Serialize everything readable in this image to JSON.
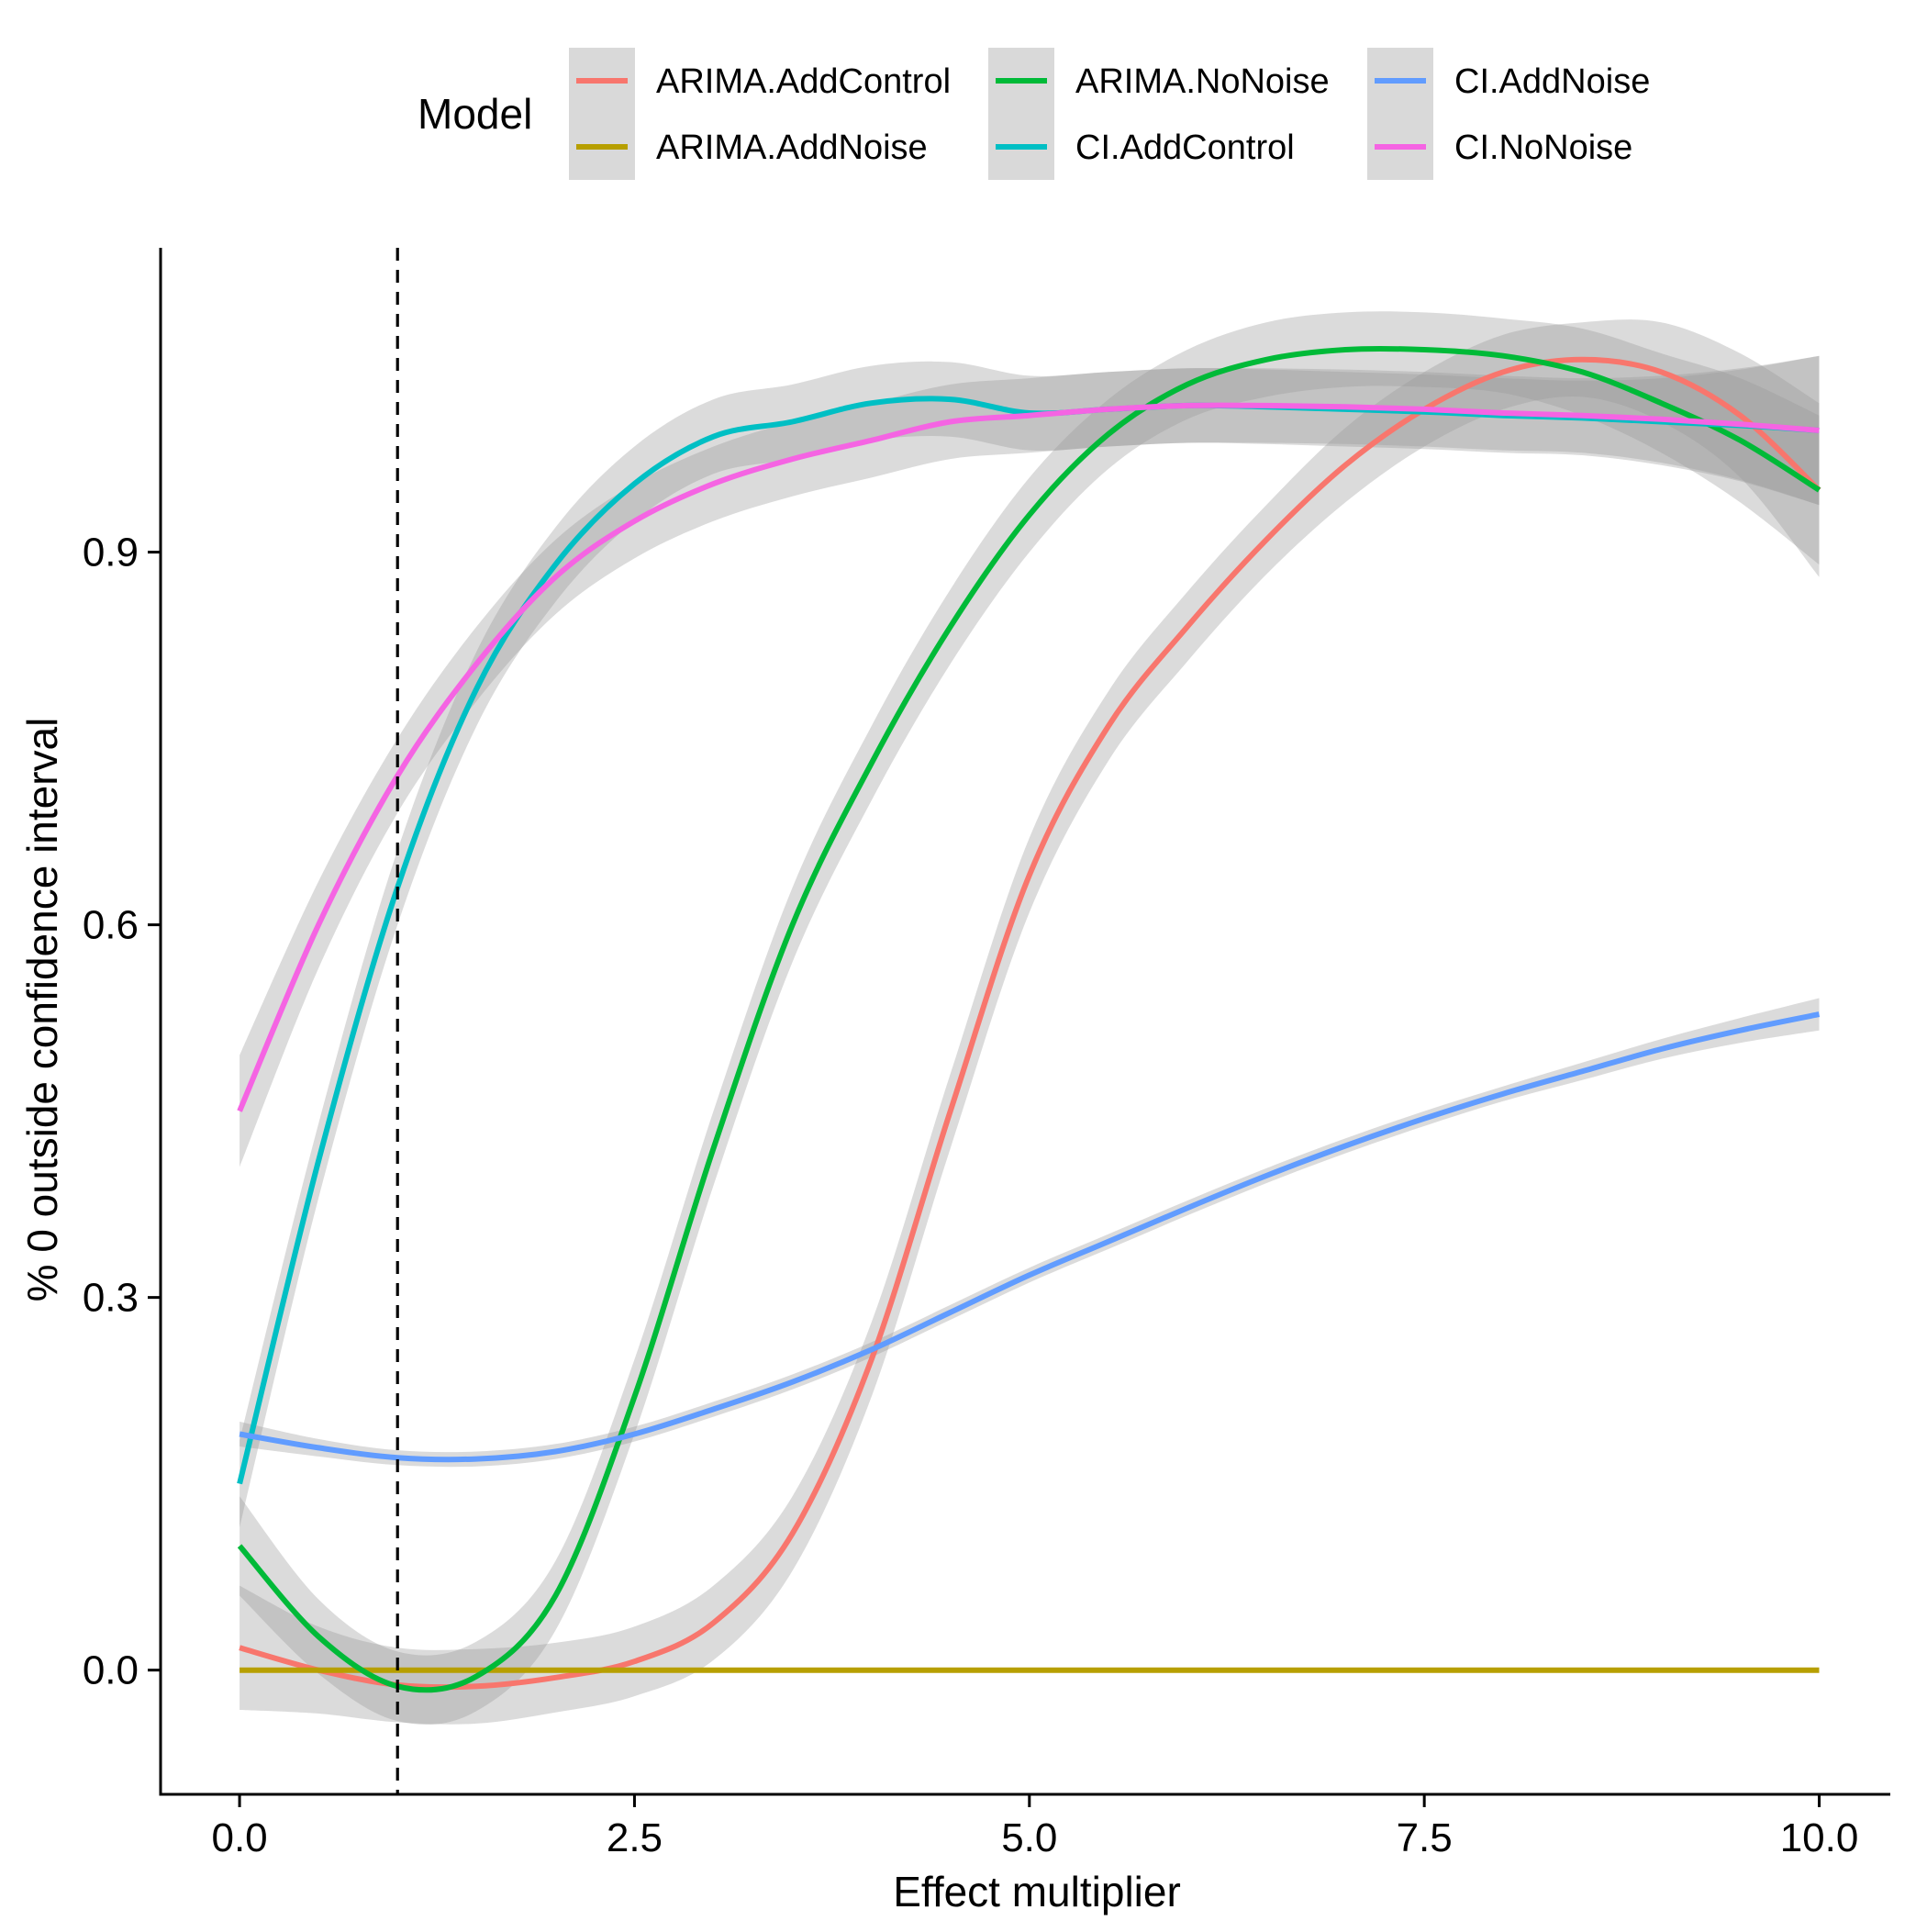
{
  "chart_data": {
    "type": "line",
    "title": "",
    "xlabel": "Effect multiplier",
    "ylabel": "% 0 outside confidence interval",
    "xlim": [
      -0.5,
      10.45
    ],
    "ylim": [
      -0.1,
      1.145
    ],
    "x_ticks": [
      0.0,
      2.5,
      5.0,
      7.5,
      10.0
    ],
    "x_tick_labels": [
      "0.0",
      "2.5",
      "5.0",
      "7.5",
      "10.0"
    ],
    "y_ticks": [
      0.0,
      0.3,
      0.6,
      0.9
    ],
    "y_tick_labels": [
      "0.0",
      "0.3",
      "0.6",
      "0.9"
    ],
    "grid": false,
    "reference_line": {
      "x": 1.0,
      "style": "dashed",
      "color": "#000000"
    },
    "legend": {
      "title": "Model",
      "position": "top",
      "columns": 3
    },
    "x": [
      0,
      0.5,
      1,
      1.5,
      2,
      2.5,
      3,
      3.5,
      4,
      4.5,
      5,
      5.5,
      6,
      6.5,
      7,
      7.5,
      8,
      8.5,
      9,
      9.5,
      10
    ],
    "series": [
      {
        "name": "ARIMA.AddControl",
        "color": "#F8766D",
        "values": [
          0.018,
          0.0,
          -0.012,
          -0.013,
          -0.006,
          0.007,
          0.038,
          0.11,
          0.25,
          0.45,
          0.64,
          0.76,
          0.84,
          0.91,
          0.97,
          1.015,
          1.045,
          1.055,
          1.045,
          1.01,
          0.95
        ],
        "band": [
          0.05,
          0.035,
          0.03,
          0.03,
          0.028,
          0.028,
          0.03,
          0.03,
          0.03,
          0.03,
          0.03,
          0.028,
          0.028,
          0.028,
          0.03,
          0.03,
          0.03,
          0.03,
          0.04,
          0.05,
          0.07
        ]
      },
      {
        "name": "ARIMA.AddNoise",
        "color": "#B79F00",
        "values": [
          0.0,
          0.0,
          0.0,
          0.0,
          0.0,
          0.0,
          0.0,
          0.0,
          0.0,
          0.0,
          0.0,
          0.0,
          0.0,
          0.0,
          0.0,
          0.0,
          0.0,
          0.0,
          0.0,
          0.0,
          0.0
        ],
        "band": [
          0,
          0,
          0,
          0,
          0,
          0,
          0,
          0,
          0,
          0,
          0,
          0,
          0,
          0,
          0,
          0,
          0,
          0,
          0,
          0,
          0
        ]
      },
      {
        "name": "ARIMA.NoNoise",
        "color": "#00BA38",
        "values": [
          0.1,
          0.027,
          -0.013,
          -0.005,
          0.06,
          0.22,
          0.42,
          0.6,
          0.73,
          0.84,
          0.93,
          0.995,
          1.035,
          1.055,
          1.063,
          1.063,
          1.058,
          1.045,
          1.02,
          0.99,
          0.95
        ],
        "band": [
          0.04,
          0.03,
          0.028,
          0.028,
          0.028,
          0.03,
          0.03,
          0.03,
          0.03,
          0.03,
          0.03,
          0.028,
          0.028,
          0.03,
          0.03,
          0.03,
          0.03,
          0.035,
          0.04,
          0.05,
          0.06
        ]
      },
      {
        "name": "CI.AddControl",
        "color": "#00BFC4",
        "values": [
          0.15,
          0.41,
          0.63,
          0.79,
          0.89,
          0.955,
          0.993,
          1.005,
          1.02,
          1.023,
          1.012,
          1.015,
          1.018,
          1.017,
          1.015,
          1.013,
          1.01,
          1.008,
          1.005,
          1.002,
          0.998
        ],
        "band": [
          0.035,
          0.03,
          0.03,
          0.03,
          0.03,
          0.03,
          0.03,
          0.03,
          0.03,
          0.03,
          0.03,
          0.03,
          0.03,
          0.03,
          0.03,
          0.03,
          0.03,
          0.03,
          0.035,
          0.045,
          0.06
        ]
      },
      {
        "name": "CI.AddNoise",
        "color": "#619CFF",
        "values": [
          0.19,
          0.179,
          0.171,
          0.17,
          0.176,
          0.19,
          0.21,
          0.232,
          0.258,
          0.288,
          0.318,
          0.345,
          0.372,
          0.398,
          0.422,
          0.444,
          0.464,
          0.482,
          0.5,
          0.515,
          0.528
        ],
        "band": [
          0.01,
          0.007,
          0.006,
          0.006,
          0.006,
          0.006,
          0.006,
          0.006,
          0.006,
          0.006,
          0.006,
          0.006,
          0.006,
          0.006,
          0.006,
          0.006,
          0.006,
          0.007,
          0.008,
          0.01,
          0.013
        ]
      },
      {
        "name": "CI.NoNoise",
        "color": "#F564E3",
        "values": [
          0.45,
          0.6,
          0.72,
          0.81,
          0.88,
          0.925,
          0.955,
          0.975,
          0.99,
          1.005,
          1.01,
          1.015,
          1.018,
          1.018,
          1.017,
          1.015,
          1.012,
          1.01,
          1.007,
          1.003,
          0.998
        ],
        "band": [
          0.045,
          0.035,
          0.03,
          0.03,
          0.03,
          0.03,
          0.03,
          0.03,
          0.03,
          0.03,
          0.03,
          0.03,
          0.03,
          0.03,
          0.03,
          0.03,
          0.03,
          0.03,
          0.035,
          0.045,
          0.06
        ]
      }
    ]
  }
}
